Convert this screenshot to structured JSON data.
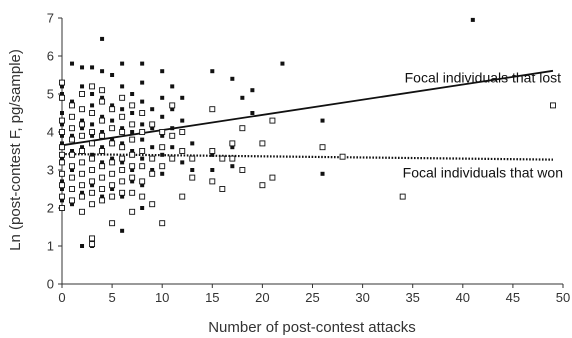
{
  "chart_data": {
    "type": "scatter",
    "xlabel": "Number of post-contest attacks",
    "ylabel": "Ln (post-contest F, pg/sample)",
    "xlim": [
      0,
      50
    ],
    "ylim": [
      0,
      7
    ],
    "x_ticks": [
      0,
      5,
      10,
      15,
      20,
      25,
      30,
      35,
      40,
      45,
      50
    ],
    "y_ticks": [
      0,
      1,
      2,
      3,
      4,
      5,
      6,
      7
    ],
    "grid": false,
    "series": [
      {
        "name": "Focal individuals that lost",
        "marker": "filled-square",
        "color": "#111111",
        "fit": {
          "style": "solid",
          "intercept": 3.65,
          "slope": 0.04
        },
        "points": [
          [
            0,
            5.2
          ],
          [
            0,
            5.0
          ],
          [
            0,
            4.5
          ],
          [
            0,
            4.2
          ],
          [
            0,
            4.0
          ],
          [
            0,
            3.9
          ],
          [
            0,
            3.7
          ],
          [
            0,
            3.3
          ],
          [
            0,
            2.7
          ],
          [
            0,
            2.5
          ],
          [
            0,
            2.2
          ],
          [
            1,
            5.8
          ],
          [
            1,
            4.8
          ],
          [
            1,
            4.4
          ],
          [
            1,
            3.9
          ],
          [
            1,
            3.5
          ],
          [
            1,
            3.0
          ],
          [
            1,
            2.1
          ],
          [
            2,
            5.7
          ],
          [
            2,
            5.2
          ],
          [
            2,
            4.6
          ],
          [
            2,
            4.3
          ],
          [
            2,
            4.1
          ],
          [
            2,
            3.6
          ],
          [
            2,
            3.2
          ],
          [
            2,
            2.9
          ],
          [
            2,
            2.4
          ],
          [
            2,
            1.0
          ],
          [
            3,
            5.7
          ],
          [
            3,
            5.0
          ],
          [
            3,
            4.7
          ],
          [
            3,
            4.2
          ],
          [
            3,
            3.9
          ],
          [
            3,
            3.4
          ],
          [
            3,
            3.0
          ],
          [
            3,
            2.6
          ],
          [
            3,
            1.0
          ],
          [
            4,
            6.45
          ],
          [
            4,
            5.6
          ],
          [
            4,
            4.9
          ],
          [
            4,
            4.4
          ],
          [
            4,
            4.0
          ],
          [
            4,
            3.6
          ],
          [
            4,
            3.2
          ],
          [
            4,
            2.8
          ],
          [
            4,
            2.3
          ],
          [
            5,
            5.5
          ],
          [
            5,
            4.7
          ],
          [
            5,
            4.3
          ],
          [
            5,
            3.8
          ],
          [
            5,
            3.3
          ],
          [
            5,
            2.9
          ],
          [
            5,
            2.5
          ],
          [
            6,
            5.8
          ],
          [
            6,
            5.2
          ],
          [
            6,
            4.6
          ],
          [
            6,
            4.1
          ],
          [
            6,
            3.7
          ],
          [
            6,
            3.2
          ],
          [
            6,
            2.7
          ],
          [
            6,
            2.3
          ],
          [
            6,
            1.4
          ],
          [
            7,
            5.0
          ],
          [
            7,
            4.5
          ],
          [
            7,
            4.0
          ],
          [
            7,
            3.5
          ],
          [
            7,
            3.0
          ],
          [
            7,
            2.7
          ],
          [
            8,
            5.8
          ],
          [
            8,
            5.3
          ],
          [
            8,
            4.8
          ],
          [
            8,
            4.2
          ],
          [
            8,
            3.8
          ],
          [
            8,
            3.3
          ],
          [
            8,
            2.6
          ],
          [
            8,
            2.0
          ],
          [
            9,
            4.6
          ],
          [
            9,
            4.1
          ],
          [
            9,
            3.6
          ],
          [
            9,
            3.0
          ],
          [
            10,
            5.6
          ],
          [
            10,
            4.9
          ],
          [
            10,
            4.4
          ],
          [
            10,
            3.9
          ],
          [
            10,
            3.4
          ],
          [
            10,
            2.9
          ],
          [
            11,
            5.2
          ],
          [
            11,
            4.6
          ],
          [
            11,
            4.1
          ],
          [
            11,
            3.6
          ],
          [
            12,
            4.9
          ],
          [
            12,
            4.3
          ],
          [
            12,
            3.2
          ],
          [
            12,
            2.3
          ],
          [
            13,
            3.7
          ],
          [
            13,
            3.0
          ],
          [
            15,
            5.6
          ],
          [
            15,
            3.4
          ],
          [
            15,
            3.0
          ],
          [
            17,
            5.4
          ],
          [
            17,
            3.6
          ],
          [
            17,
            3.1
          ],
          [
            18,
            4.9
          ],
          [
            19,
            5.1
          ],
          [
            19,
            4.5
          ],
          [
            22,
            5.8
          ],
          [
            26,
            4.3
          ],
          [
            26,
            2.9
          ],
          [
            41,
            6.95
          ]
        ]
      },
      {
        "name": "Focal individuals that won",
        "marker": "open-square",
        "color": "#111111",
        "fit": {
          "style": "dotted",
          "intercept": 3.42,
          "slope": -0.003
        },
        "points": [
          [
            0,
            5.3
          ],
          [
            0,
            4.9
          ],
          [
            0,
            4.3
          ],
          [
            0,
            4.0
          ],
          [
            0,
            3.6
          ],
          [
            0,
            3.4
          ],
          [
            0,
            3.2
          ],
          [
            0,
            2.9
          ],
          [
            0,
            2.6
          ],
          [
            0,
            2.3
          ],
          [
            0,
            2.0
          ],
          [
            1,
            4.7
          ],
          [
            1,
            4.4
          ],
          [
            1,
            4.1
          ],
          [
            1,
            3.8
          ],
          [
            1,
            3.4
          ],
          [
            1,
            3.1
          ],
          [
            1,
            2.8
          ],
          [
            1,
            2.5
          ],
          [
            1,
            2.2
          ],
          [
            2,
            5.0
          ],
          [
            2,
            4.6
          ],
          [
            2,
            4.2
          ],
          [
            2,
            3.9
          ],
          [
            2,
            3.5
          ],
          [
            2,
            3.2
          ],
          [
            2,
            2.9
          ],
          [
            2,
            2.6
          ],
          [
            2,
            2.3
          ],
          [
            2,
            1.9
          ],
          [
            3,
            5.2
          ],
          [
            3,
            4.5
          ],
          [
            3,
            4.0
          ],
          [
            3,
            3.7
          ],
          [
            3,
            3.3
          ],
          [
            3,
            3.0
          ],
          [
            3,
            2.7
          ],
          [
            3,
            2.4
          ],
          [
            3,
            2.1
          ],
          [
            3,
            1.2
          ],
          [
            3,
            1.05
          ],
          [
            4,
            5.1
          ],
          [
            4,
            4.8
          ],
          [
            4,
            4.3
          ],
          [
            4,
            3.9
          ],
          [
            4,
            3.5
          ],
          [
            4,
            3.1
          ],
          [
            4,
            2.8
          ],
          [
            4,
            2.5
          ],
          [
            4,
            2.2
          ],
          [
            5,
            4.6
          ],
          [
            5,
            4.1
          ],
          [
            5,
            3.7
          ],
          [
            5,
            3.2
          ],
          [
            5,
            2.9
          ],
          [
            5,
            2.6
          ],
          [
            5,
            2.3
          ],
          [
            5,
            1.6
          ],
          [
            6,
            4.9
          ],
          [
            6,
            4.4
          ],
          [
            6,
            4.0
          ],
          [
            6,
            3.6
          ],
          [
            6,
            3.3
          ],
          [
            6,
            3.0
          ],
          [
            6,
            2.7
          ],
          [
            6,
            2.4
          ],
          [
            7,
            4.7
          ],
          [
            7,
            4.2
          ],
          [
            7,
            3.8
          ],
          [
            7,
            3.4
          ],
          [
            7,
            3.1
          ],
          [
            7,
            2.8
          ],
          [
            7,
            2.4
          ],
          [
            7,
            1.9
          ],
          [
            8,
            4.5
          ],
          [
            8,
            4.0
          ],
          [
            8,
            3.5
          ],
          [
            8,
            3.1
          ],
          [
            8,
            2.7
          ],
          [
            8,
            2.3
          ],
          [
            9,
            4.2
          ],
          [
            9,
            3.3
          ],
          [
            9,
            2.9
          ],
          [
            9,
            2.1
          ],
          [
            10,
            4.0
          ],
          [
            10,
            3.6
          ],
          [
            10,
            3.1
          ],
          [
            10,
            1.6
          ],
          [
            11,
            4.7
          ],
          [
            11,
            3.9
          ],
          [
            11,
            3.3
          ],
          [
            12,
            4.0
          ],
          [
            12,
            3.5
          ],
          [
            12,
            2.3
          ],
          [
            13,
            3.3
          ],
          [
            13,
            2.8
          ],
          [
            15,
            4.6
          ],
          [
            15,
            3.5
          ],
          [
            15,
            2.7
          ],
          [
            16,
            3.3
          ],
          [
            16,
            2.5
          ],
          [
            17,
            3.7
          ],
          [
            17,
            3.3
          ],
          [
            18,
            4.1
          ],
          [
            18,
            3.0
          ],
          [
            20,
            3.7
          ],
          [
            20,
            2.6
          ],
          [
            21,
            4.3
          ],
          [
            21,
            2.8
          ],
          [
            26,
            3.6
          ],
          [
            28,
            3.35
          ],
          [
            34,
            2.3
          ],
          [
            49,
            4.7
          ]
        ]
      }
    ],
    "annotations": [
      {
        "text": "Focal individuals that lost",
        "x": 42,
        "y": 5.3
      },
      {
        "text": "Focal individuals that won",
        "x": 42,
        "y": 2.8
      }
    ]
  }
}
